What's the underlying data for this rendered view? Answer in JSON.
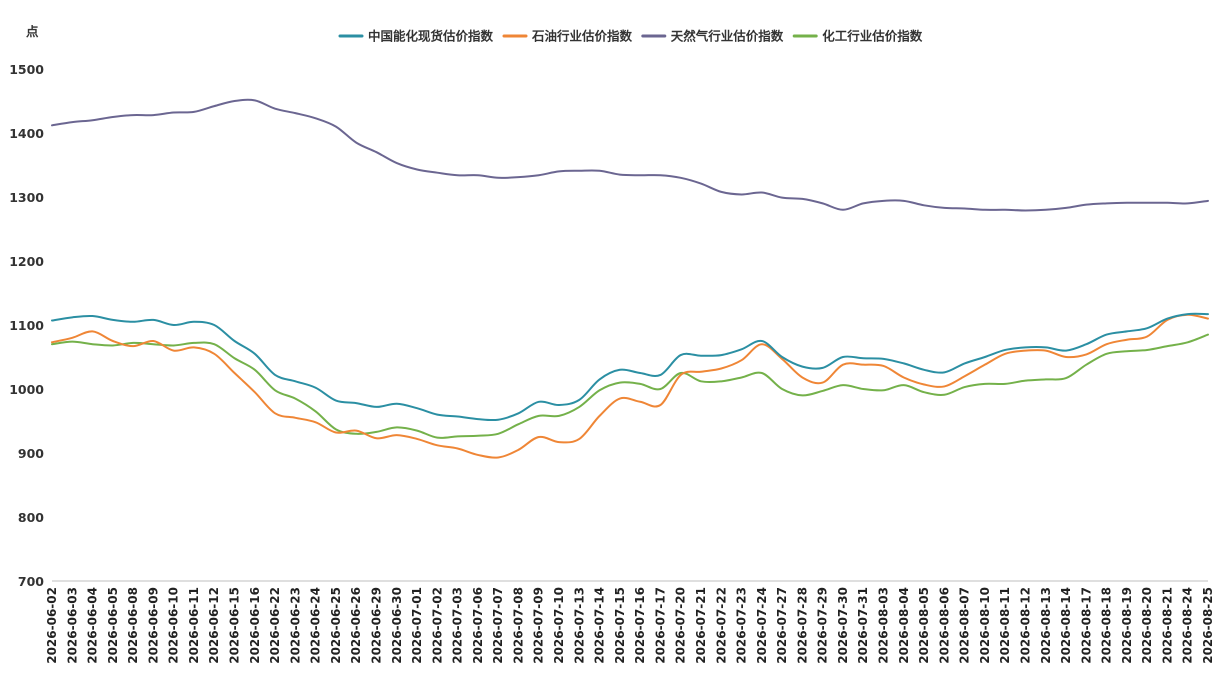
{
  "chart_data": {
    "type": "line",
    "unit_label": "点",
    "ylim": [
      700,
      1500
    ],
    "yticks": [
      700,
      800,
      900,
      1000,
      1100,
      1200,
      1300,
      1400,
      1500
    ],
    "legend_position": "top-center",
    "grid": false,
    "categories": [
      "2026-06-02",
      "2026-06-03",
      "2026-06-04",
      "2026-06-05",
      "2026-06-08",
      "2026-06-09",
      "2026-06-10",
      "2026-06-11",
      "2026-06-12",
      "2026-06-15",
      "2026-06-16",
      "2026-06-22",
      "2026-06-23",
      "2026-06-24",
      "2026-06-25",
      "2026-06-26",
      "2026-06-29",
      "2026-06-30",
      "2026-07-01",
      "2026-07-02",
      "2026-07-03",
      "2026-07-06",
      "2026-07-07",
      "2026-07-08",
      "2026-07-09",
      "2026-07-10",
      "2026-07-13",
      "2026-07-14",
      "2026-07-15",
      "2026-07-16",
      "2026-07-17",
      "2026-07-20",
      "2026-07-21",
      "2026-07-22",
      "2026-07-23",
      "2026-07-24",
      "2026-07-27",
      "2026-07-28",
      "2026-07-29",
      "2026-07-30",
      "2026-07-31",
      "2026-08-03",
      "2026-08-04",
      "2026-08-05",
      "2026-08-06",
      "2026-08-07",
      "2026-08-10",
      "2026-08-11",
      "2026-08-12",
      "2026-08-13",
      "2026-08-14",
      "2026-08-17",
      "2026-08-18",
      "2026-08-19",
      "2026-08-20",
      "2026-08-21",
      "2026-08-24",
      "2026-08-25"
    ],
    "series": [
      {
        "name": "中国能化现货估价指数",
        "color": "#2b8fa3",
        "values": [
          1107,
          1112,
          1114,
          1108,
          1105,
          1108,
          1100,
          1105,
          1100,
          1075,
          1055,
          1022,
          1012,
          1002,
          982,
          978,
          972,
          977,
          970,
          960,
          957,
          953,
          952,
          962,
          980,
          975,
          983,
          1015,
          1030,
          1025,
          1022,
          1053,
          1052,
          1053,
          1062,
          1075,
          1050,
          1035,
          1033,
          1050,
          1048,
          1047,
          1040,
          1030,
          1026,
          1040,
          1050,
          1061,
          1065,
          1065,
          1060,
          1070,
          1085,
          1090,
          1095,
          1110,
          1117,
          1117
        ]
      },
      {
        "name": "石油行业估价指数",
        "color": "#ef8636",
        "values": [
          1073,
          1080,
          1090,
          1075,
          1067,
          1075,
          1060,
          1065,
          1055,
          1025,
          995,
          962,
          955,
          948,
          932,
          935,
          923,
          928,
          922,
          912,
          907,
          897,
          893,
          905,
          925,
          917,
          922,
          958,
          985,
          980,
          975,
          1022,
          1027,
          1032,
          1045,
          1070,
          1047,
          1018,
          1010,
          1038,
          1038,
          1036,
          1018,
          1007,
          1004,
          1020,
          1038,
          1055,
          1060,
          1060,
          1050,
          1054,
          1070,
          1077,
          1082,
          1108,
          1116,
          1110
        ]
      },
      {
        "name": "天然气行业估价指数",
        "color": "#6b6691",
        "values": [
          1412,
          1417,
          1420,
          1425,
          1428,
          1428,
          1432,
          1433,
          1442,
          1450,
          1451,
          1438,
          1431,
          1423,
          1410,
          1385,
          1370,
          1353,
          1343,
          1338,
          1334,
          1334,
          1330,
          1331,
          1334,
          1340,
          1341,
          1341,
          1335,
          1334,
          1334,
          1330,
          1321,
          1308,
          1304,
          1307,
          1299,
          1297,
          1290,
          1280,
          1290,
          1294,
          1294,
          1287,
          1283,
          1282,
          1280,
          1280,
          1279,
          1280,
          1283,
          1288,
          1290,
          1291,
          1291,
          1291,
          1290,
          1294
        ]
      },
      {
        "name": "化工行业估价指数",
        "color": "#74b14a",
        "values": [
          1070,
          1074,
          1070,
          1068,
          1072,
          1070,
          1068,
          1072,
          1070,
          1048,
          1030,
          998,
          985,
          965,
          937,
          930,
          933,
          940,
          935,
          924,
          926,
          927,
          930,
          945,
          958,
          958,
          972,
          998,
          1010,
          1008,
          1000,
          1025,
          1012,
          1012,
          1018,
          1025,
          1000,
          990,
          997,
          1006,
          1000,
          998,
          1006,
          995,
          991,
          1003,
          1008,
          1008,
          1013,
          1015,
          1017,
          1038,
          1055,
          1059,
          1061,
          1067,
          1073,
          1085
        ]
      }
    ]
  }
}
